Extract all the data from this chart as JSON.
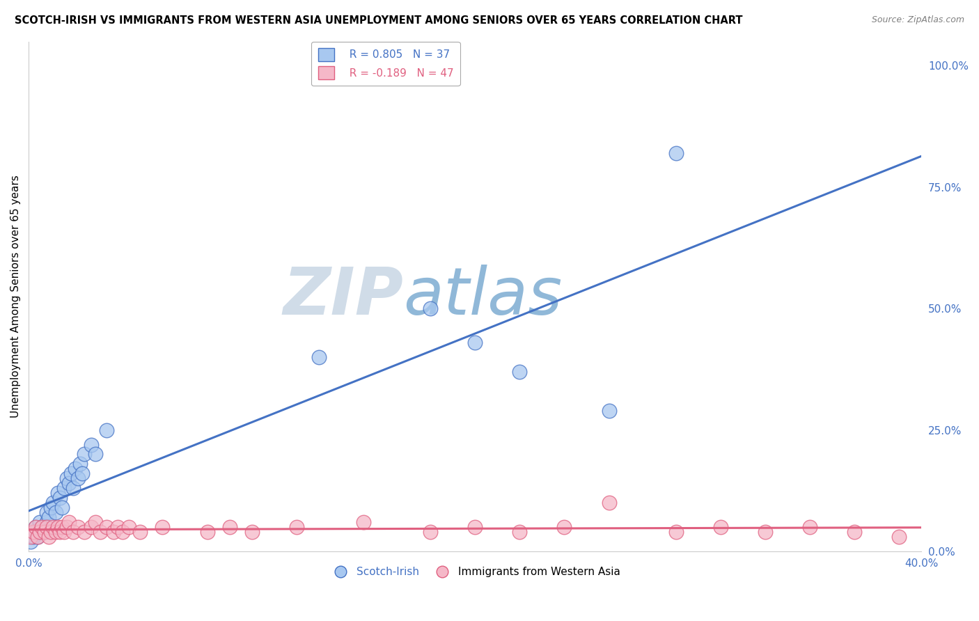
{
  "title": "SCOTCH-IRISH VS IMMIGRANTS FROM WESTERN ASIA UNEMPLOYMENT AMONG SENIORS OVER 65 YEARS CORRELATION CHART",
  "source": "Source: ZipAtlas.com",
  "ylabel": "Unemployment Among Seniors over 65 years",
  "xlim": [
    0.0,
    0.4
  ],
  "ylim": [
    0.0,
    1.05
  ],
  "x_tick_labels": [
    "0.0%",
    "",
    "",
    "",
    "",
    "",
    "",
    "",
    "40.0%"
  ],
  "x_ticks": [
    0.0,
    0.05,
    0.1,
    0.15,
    0.2,
    0.25,
    0.3,
    0.35,
    0.4
  ],
  "y_tick_labels_right": [
    "0.0%",
    "25.0%",
    "50.0%",
    "75.0%",
    "100.0%"
  ],
  "y_ticks_right": [
    0.0,
    0.25,
    0.5,
    0.75,
    1.0
  ],
  "legend_blue_R": "R = 0.805",
  "legend_blue_N": "N = 37",
  "legend_pink_R": "R = -0.189",
  "legend_pink_N": "N = 47",
  "blue_color": "#a8c8f0",
  "pink_color": "#f5b8c8",
  "blue_line_color": "#4472c4",
  "pink_line_color": "#e06080",
  "watermark_zip": "ZIP",
  "watermark_atlas": "atlas",
  "watermark_color_zip": "#d0dce8",
  "watermark_color_atlas": "#90b8d8",
  "grid_color": "#cccccc",
  "scotch_irish_x": [
    0.001,
    0.002,
    0.003,
    0.003,
    0.004,
    0.005,
    0.005,
    0.006,
    0.007,
    0.008,
    0.008,
    0.009,
    0.01,
    0.011,
    0.012,
    0.013,
    0.014,
    0.015,
    0.016,
    0.017,
    0.018,
    0.019,
    0.02,
    0.021,
    0.022,
    0.023,
    0.024,
    0.025,
    0.028,
    0.03,
    0.035,
    0.13,
    0.18,
    0.2,
    0.22,
    0.26,
    0.29
  ],
  "scotch_irish_y": [
    0.02,
    0.03,
    0.04,
    0.05,
    0.03,
    0.04,
    0.06,
    0.05,
    0.04,
    0.06,
    0.08,
    0.07,
    0.09,
    0.1,
    0.08,
    0.12,
    0.11,
    0.09,
    0.13,
    0.15,
    0.14,
    0.16,
    0.13,
    0.17,
    0.15,
    0.18,
    0.16,
    0.2,
    0.22,
    0.2,
    0.25,
    0.4,
    0.5,
    0.43,
    0.37,
    0.29,
    0.82
  ],
  "western_asia_x": [
    0.001,
    0.002,
    0.003,
    0.004,
    0.005,
    0.006,
    0.007,
    0.008,
    0.009,
    0.01,
    0.011,
    0.012,
    0.013,
    0.014,
    0.015,
    0.016,
    0.017,
    0.018,
    0.02,
    0.022,
    0.025,
    0.028,
    0.03,
    0.032,
    0.035,
    0.038,
    0.04,
    0.042,
    0.045,
    0.05,
    0.06,
    0.08,
    0.09,
    0.1,
    0.12,
    0.15,
    0.18,
    0.2,
    0.22,
    0.24,
    0.26,
    0.29,
    0.31,
    0.33,
    0.35,
    0.37,
    0.39
  ],
  "western_asia_y": [
    0.03,
    0.04,
    0.05,
    0.03,
    0.04,
    0.05,
    0.04,
    0.05,
    0.03,
    0.04,
    0.05,
    0.04,
    0.05,
    0.04,
    0.05,
    0.04,
    0.05,
    0.06,
    0.04,
    0.05,
    0.04,
    0.05,
    0.06,
    0.04,
    0.05,
    0.04,
    0.05,
    0.04,
    0.05,
    0.04,
    0.05,
    0.04,
    0.05,
    0.04,
    0.05,
    0.06,
    0.04,
    0.05,
    0.04,
    0.05,
    0.1,
    0.04,
    0.05,
    0.04,
    0.05,
    0.04,
    0.03
  ]
}
